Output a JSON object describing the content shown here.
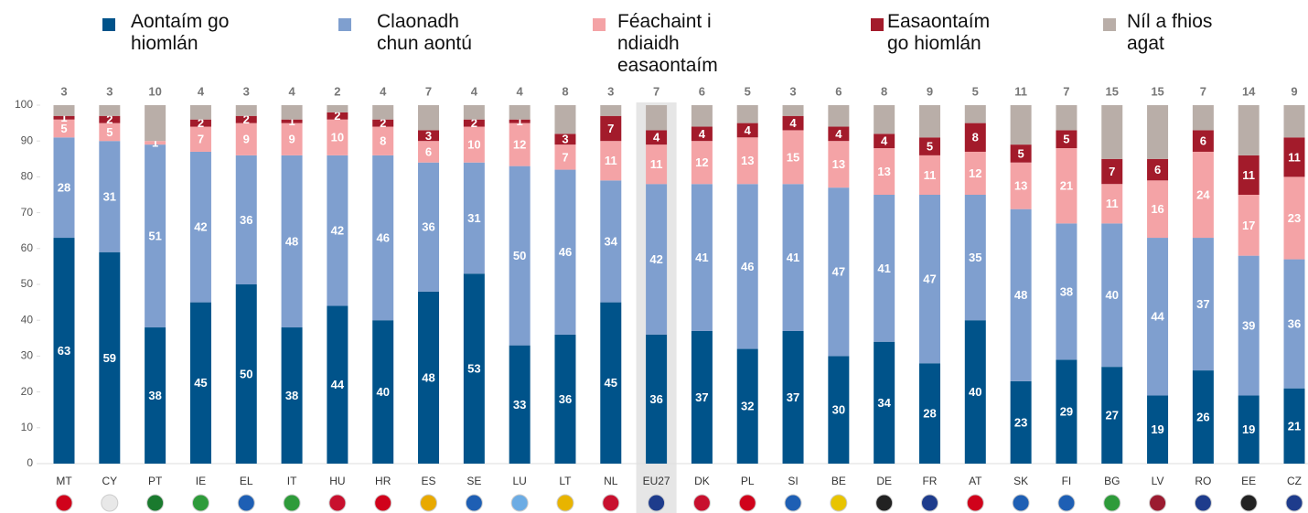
{
  "chart_data": {
    "type": "stacked_bar",
    "categories": [
      "MT",
      "CY",
      "PT",
      "IE",
      "EL",
      "IT",
      "HU",
      "HR",
      "ES",
      "SE",
      "LU",
      "LT",
      "NL",
      "EU27",
      "DK",
      "PL",
      "SI",
      "BE",
      "DE",
      "FR",
      "AT",
      "SK",
      "FI",
      "BG",
      "LV",
      "RO",
      "EE",
      "CZ"
    ],
    "series": [
      {
        "name": "Aontaím go hiomlán",
        "color": "#00538a",
        "values": [
          63,
          59,
          38,
          45,
          50,
          38,
          44,
          40,
          48,
          53,
          33,
          36,
          45,
          36,
          37,
          32,
          37,
          30,
          34,
          28,
          40,
          23,
          29,
          27,
          19,
          26,
          19,
          21
        ]
      },
      {
        "name": "Claonadh chun aontú",
        "color": "#7f9fcf",
        "values": [
          28,
          31,
          51,
          42,
          36,
          48,
          42,
          46,
          36,
          31,
          50,
          46,
          34,
          42,
          41,
          46,
          41,
          47,
          41,
          47,
          35,
          48,
          38,
          40,
          44,
          37,
          39,
          36
        ]
      },
      {
        "name": "Féachaint i ndiaidh easaontaím",
        "color": "#f4a3a6",
        "values": [
          5,
          5,
          1,
          7,
          9,
          9,
          10,
          8,
          6,
          10,
          12,
          7,
          11,
          11,
          12,
          13,
          15,
          13,
          13,
          11,
          12,
          13,
          21,
          11,
          16,
          24,
          17,
          23
        ]
      },
      {
        "name": "Easaontaím go hiomlán",
        "color": "#a31b2b",
        "values": [
          1,
          2,
          null,
          2,
          2,
          1,
          2,
          2,
          3,
          2,
          1,
          3,
          7,
          4,
          4,
          4,
          4,
          4,
          4,
          5,
          8,
          5,
          5,
          7,
          6,
          6,
          11,
          11
        ]
      },
      {
        "name": "Níl a fhios agat",
        "color": "#b9aea8",
        "values": [
          3,
          3,
          10,
          4,
          3,
          4,
          2,
          4,
          7,
          4,
          4,
          8,
          3,
          7,
          6,
          5,
          3,
          6,
          8,
          9,
          5,
          11,
          7,
          15,
          15,
          7,
          14,
          9
        ]
      }
    ],
    "ylim": [
      0,
      100
    ],
    "yticks": [
      0,
      10,
      20,
      30,
      40,
      50,
      60,
      70,
      80,
      90,
      100
    ],
    "highlight": "EU27"
  }
}
